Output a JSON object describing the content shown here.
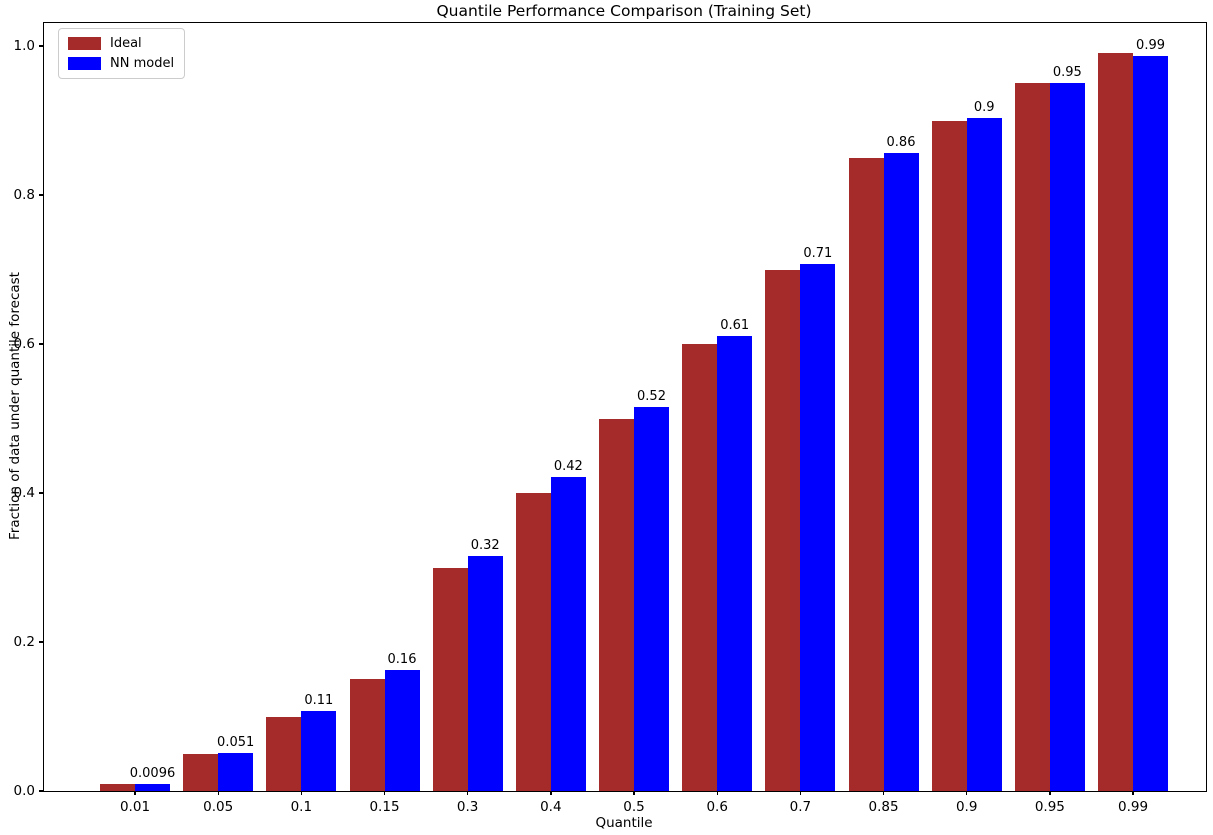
{
  "chart_data": {
    "type": "bar",
    "title": "Quantile Performance Comparison (Training Set)",
    "xlabel": "Quantile",
    "ylabel": "Fraction of data under quantile forecast",
    "categories": [
      "0.01",
      "0.05",
      "0.1",
      "0.15",
      "0.3",
      "0.4",
      "0.5",
      "0.6",
      "0.7",
      "0.85",
      "0.9",
      "0.95",
      "0.99"
    ],
    "series": [
      {
        "name": "Ideal",
        "color": "#a52a2a",
        "values": [
          0.01,
          0.05,
          0.1,
          0.15,
          0.3,
          0.4,
          0.5,
          0.6,
          0.7,
          0.85,
          0.9,
          0.95,
          0.99
        ]
      },
      {
        "name": "NN model",
        "color": "#0000ff",
        "values": [
          0.0096,
          0.051,
          0.107,
          0.163,
          0.316,
          0.421,
          0.515,
          0.611,
          0.708,
          0.857,
          0.903,
          0.951,
          0.986
        ],
        "bar_labels": [
          "0.0096",
          "0.051",
          "0.11",
          "0.16",
          "0.32",
          "0.42",
          "0.52",
          "0.61",
          "0.71",
          "0.86",
          "0.9",
          "0.95",
          "0.99"
        ]
      }
    ],
    "yticks": [
      "0.0",
      "0.2",
      "0.4",
      "0.6",
      "0.8",
      "1.0"
    ],
    "ylim": [
      0,
      1.031
    ],
    "grid": false,
    "legend_position": "upper left"
  }
}
